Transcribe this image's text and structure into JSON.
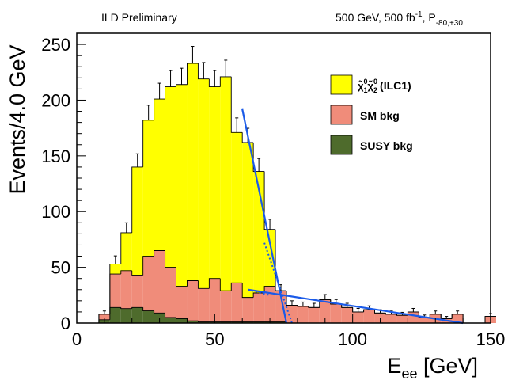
{
  "chart_data": {
    "type": "bar",
    "subtype": "stacked-histogram",
    "header_left": "ILD Preliminary",
    "header_right": {
      "text": "500 GeV, 500 fb",
      "sup": "-1",
      "text2": ", P",
      "sub": "-80,+30"
    },
    "xlabel": "E",
    "xlabel_sub": "ee",
    "xlabel_unit": " [GeV]",
    "ylabel": "Events/4.0 GeV",
    "xlim": [
      0,
      150
    ],
    "ylim": [
      0,
      260
    ],
    "xticks": [
      0,
      50,
      100,
      150
    ],
    "yticks": [
      0,
      50,
      100,
      150,
      200,
      250
    ],
    "bin_width": 4,
    "bin_starts": [
      8,
      12,
      16,
      20,
      24,
      28,
      32,
      36,
      40,
      44,
      48,
      52,
      56,
      60,
      64,
      68,
      72,
      76,
      80,
      84,
      88,
      92,
      96,
      100,
      104,
      108,
      112,
      116,
      120,
      124,
      128,
      132,
      136,
      140,
      144,
      148
    ],
    "series": [
      {
        "name": "SUSY bkg",
        "color": "#4e6b2c",
        "values": [
          3,
          14,
          13,
          14,
          11,
          9,
          5,
          4,
          2,
          1,
          1,
          1,
          1,
          1,
          1,
          1,
          1,
          0,
          0,
          0,
          0,
          0,
          0,
          0,
          0,
          0,
          0,
          0,
          0,
          0,
          0,
          0,
          0,
          0,
          0,
          0
        ]
      },
      {
        "name": "SM bkg",
        "color": "#f08c7a",
        "values": [
          5,
          30,
          34,
          29,
          49,
          56,
          45,
          29,
          36,
          30,
          39,
          28,
          35,
          22,
          26,
          32,
          28,
          16,
          15,
          14,
          21,
          17,
          14,
          10,
          12,
          9,
          8,
          7,
          10,
          5,
          8,
          4,
          8,
          0,
          0,
          6
        ]
      },
      {
        "name": "χ̃0₁χ̃0₂ (ILC1)",
        "color": "#ffff00",
        "values": [
          0,
          9,
          34,
          97,
          122,
          136,
          162,
          181,
          195,
          188,
          172,
          192,
          135,
          139,
          109,
          51,
          0,
          0,
          0,
          0,
          0,
          0,
          0,
          0,
          0,
          0,
          0,
          0,
          0,
          0,
          0,
          0,
          0,
          0,
          0,
          0
        ]
      }
    ],
    "legend": [
      {
        "label": "(ILC1)",
        "color": "#ffff00",
        "symbol": "neutralino-pair"
      },
      {
        "label": "SM bkg",
        "color": "#f08c7a"
      },
      {
        "label": "SUSY bkg",
        "color": "#4e6b2c"
      }
    ],
    "fits": [
      {
        "name": "signal-edge-fit",
        "color": "#1a5ae8",
        "style": "solid",
        "x": [
          60,
          76
        ],
        "y": [
          192,
          0
        ]
      },
      {
        "name": "background-fit",
        "color": "#1a5ae8",
        "style": "solid",
        "x": [
          62,
          140
        ],
        "y": [
          30,
          0
        ]
      }
    ]
  }
}
